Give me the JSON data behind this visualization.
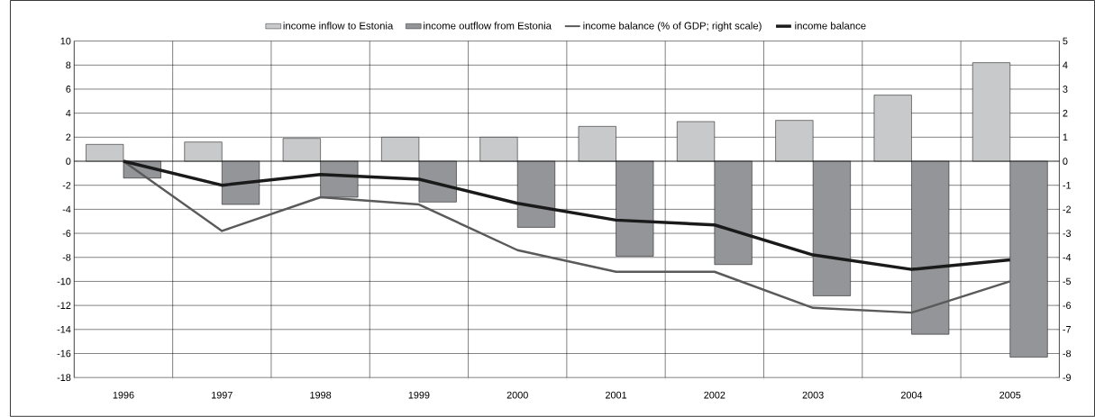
{
  "chart_data": {
    "type": "bar",
    "categories": [
      "1996",
      "1997",
      "1998",
      "1999",
      "2000",
      "2001",
      "2002",
      "2003",
      "2004",
      "2005"
    ],
    "series": [
      {
        "name": "income inflow to Estonia",
        "color": "#c8c9cb",
        "values": [
          1.4,
          1.6,
          1.9,
          2.0,
          2.0,
          2.9,
          3.3,
          3.4,
          5.5,
          8.2
        ]
      },
      {
        "name": "income outflow from Estonia",
        "color": "#949599",
        "values": [
          -1.4,
          -3.6,
          -3.0,
          -3.4,
          -5.5,
          -7.9,
          -8.6,
          -11.2,
          -14.4,
          -16.3
        ]
      },
      {
        "name": "income balance (% of GDP; right scale)",
        "type": "line",
        "axis": "y2",
        "color": "#5a5a5a",
        "values": [
          0,
          -2.9,
          -1.5,
          -1.8,
          -3.7,
          -4.6,
          -4.6,
          -6.1,
          -6.3,
          -5.0
        ]
      },
      {
        "name": "income balance",
        "type": "line",
        "color": "#1a1a1a",
        "values": [
          0,
          -2.0,
          -1.1,
          -1.5,
          -3.5,
          -4.9,
          -5.3,
          -7.8,
          -9.0,
          -8.2
        ]
      }
    ],
    "ylim": [
      -18,
      10
    ],
    "yticks": [
      -18,
      -16,
      -14,
      -12,
      -10,
      -8,
      -6,
      -4,
      -2,
      0,
      2,
      4,
      6,
      8,
      10
    ],
    "y2lim": [
      -9,
      5
    ],
    "y2ticks": [
      -9,
      -8,
      -7,
      -6,
      -5,
      -4,
      -3,
      -2,
      -1,
      0,
      1,
      2,
      3,
      4,
      5
    ],
    "grid": true,
    "legend": "top"
  }
}
